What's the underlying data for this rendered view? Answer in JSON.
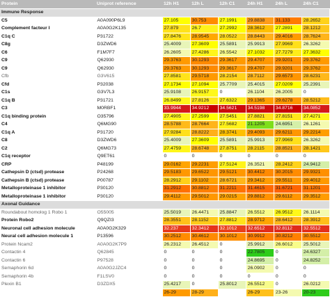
{
  "headers": [
    "Protein",
    "Uniprot reference",
    "12h H1",
    "12h L",
    "12h C1",
    "24h H1",
    "24h L",
    "24h C1"
  ],
  "rows": [
    {
      "type": "section",
      "title": "Immune Response"
    },
    {
      "protein": "C5",
      "uniprot": "A0A090P6L9",
      "cells": [
        {
          "v": "27.105",
          "c": "#ffff00"
        },
        {
          "v": "30.753",
          "c": "#ff8c00"
        },
        {
          "v": "27.1991",
          "c": "#ffff00"
        },
        {
          "v": "29.8838",
          "c": "#ff9c1a"
        },
        {
          "v": "31.133",
          "c": "#ff7a00"
        },
        {
          "v": "28.2652",
          "c": "#ffd21a"
        }
      ]
    },
    {
      "protein": "Complement facteur I",
      "uniprot": "A0A0G2K135",
      "cells": [
        {
          "v": "27.879",
          "c": "#ffe21a"
        },
        {
          "v": "26.7",
          "c": "#fff21a"
        },
        {
          "v": "27.2992",
          "c": "#ffff00"
        },
        {
          "v": "28.3612",
          "c": "#ffc000"
        },
        {
          "v": "27.2891",
          "c": "#ffff00"
        },
        {
          "v": "28.1212",
          "c": "#ffc81a"
        }
      ]
    },
    {
      "protein": "C1q C",
      "uniprot": "P31722",
      "cells": [
        {
          "v": "27.8476",
          "c": "#ffe41a"
        },
        {
          "v": "28.9545",
          "c": "#ffa800"
        },
        {
          "v": "28.0522",
          "c": "#ffda1a"
        },
        {
          "v": "28.8443",
          "c": "#ffb01a"
        },
        {
          "v": "29.4016",
          "c": "#ff9a00"
        },
        {
          "v": "28.7624",
          "c": "#ffb41a"
        }
      ]
    },
    {
      "protein": "C8g",
      "uniprot": "D3ZWD6",
      "cells": [
        {
          "v": "25.4009",
          "c": "#e8f5b8"
        },
        {
          "v": "27.3609",
          "c": "#ffff00"
        },
        {
          "v": "25.5891",
          "c": "#e8f5b8"
        },
        {
          "v": "25.9913",
          "c": "#e8f5b8"
        },
        {
          "v": "27.9969",
          "c": "#ffe01a"
        },
        {
          "v": "26.3262",
          "c": "#f4fab0"
        }
      ]
    },
    {
      "protein": "C6",
      "uniprot": "F1M7F7",
      "cells": [
        {
          "v": "26.2605",
          "c": "#f4fab0"
        },
        {
          "v": "27.4286",
          "c": "#fff61a"
        },
        {
          "v": "26.5542",
          "c": "#f8fc8a"
        },
        {
          "v": "27.1032",
          "c": "#ffff00"
        },
        {
          "v": "27.7279",
          "c": "#ffec1a"
        },
        {
          "v": "27.3632",
          "c": "#ffff00"
        }
      ]
    },
    {
      "protein": "C9",
      "uniprot": "Q62930",
      "cells": [
        {
          "v": "29.3763",
          "c": "#ff9a00"
        },
        {
          "v": "30.1293",
          "c": "#ff8a00"
        },
        {
          "v": "29.3617",
          "c": "#ff9a00"
        },
        {
          "v": "29.4707",
          "c": "#ff9800"
        },
        {
          "v": "29.9201",
          "c": "#ff9000"
        },
        {
          "v": "29.3762",
          "c": "#ff9a00"
        }
      ]
    },
    {
      "protein": "C9",
      "uniprot": "Q62930",
      "cells": [
        {
          "v": "29.3763",
          "c": "#ff9a00"
        },
        {
          "v": "30.1293",
          "c": "#ff8a00"
        },
        {
          "v": "29.3617",
          "c": "#ff9a00"
        },
        {
          "v": "29.4707",
          "c": "#ff9800"
        },
        {
          "v": "29.9201",
          "c": "#ff9000"
        },
        {
          "v": "29.3762",
          "c": "#ff9a00"
        }
      ]
    },
    {
      "protein": "Cfb",
      "uniprot": "G3V615",
      "lite": true,
      "cells": [
        {
          "v": "27.8581",
          "c": "#ffe41a"
        },
        {
          "v": "29.5718",
          "c": "#ff9a00"
        },
        {
          "v": "28.2154",
          "c": "#ffd21a"
        },
        {
          "v": "28.7112",
          "c": "#ffb61a"
        },
        {
          "v": "29.6573",
          "c": "#ff9600"
        },
        {
          "v": "28.6231",
          "c": "#ffb81a"
        }
      ]
    },
    {
      "protein": "Cfd",
      "uniprot": "P32038",
      "cells": [
        {
          "v": "27.1734",
          "c": "#ffff00"
        },
        {
          "v": "27.1094",
          "c": "#ffff00"
        },
        {
          "v": "25.7709",
          "c": "#e8f5b8"
        },
        {
          "v": "25.4015",
          "c": "#e8f5b8"
        },
        {
          "v": "27.0209",
          "c": "#ffff00"
        },
        {
          "v": "25.2391",
          "c": "#e8f5b8"
        }
      ]
    },
    {
      "protein": "C1s",
      "uniprot": "G3V7L3",
      "cells": [
        {
          "v": "25.9108",
          "c": "#e8f5b8"
        },
        {
          "v": "26.9157",
          "c": "#fff81a"
        },
        {
          "v": "0",
          "c": "#ffffff"
        },
        {
          "v": "26.1104",
          "c": "#f4fab0"
        },
        {
          "v": "26.2005",
          "c": "#f4fab0"
        },
        {
          "v": "0",
          "c": "#ffffff"
        }
      ]
    },
    {
      "protein": "C1q B",
      "uniprot": "P31721",
      "cells": [
        {
          "v": "26.8499",
          "c": "#fff81a"
        },
        {
          "v": "27.8126",
          "c": "#ffe61a"
        },
        {
          "v": "27.6322",
          "c": "#ffee1a"
        },
        {
          "v": "29.1365",
          "c": "#ffa000"
        },
        {
          "v": "29.6278",
          "c": "#ff9600"
        },
        {
          "v": "28.5212",
          "c": "#ffbc1a"
        }
      ]
    },
    {
      "protein": "C3",
      "uniprot": "M0RBF1",
      "cells": [
        {
          "v": "33.9944",
          "c": "#d41a1a",
          "light": true
        },
        {
          "v": "34.9212",
          "c": "#c80000",
          "light": true
        },
        {
          "v": "34.5621",
          "c": "#cc0a0a",
          "light": true
        },
        {
          "v": "34.5198",
          "c": "#cc0a0a",
          "light": true
        },
        {
          "v": "34.8716",
          "c": "#c80000",
          "light": true
        },
        {
          "v": "34.0852",
          "c": "#d41a1a",
          "light": true
        }
      ]
    },
    {
      "protein": "C1q binding protein",
      "uniprot": "O35796",
      "cells": [
        {
          "v": "27.4905",
          "c": "#fff61a"
        },
        {
          "v": "27.2599",
          "c": "#ffff00"
        },
        {
          "v": "27.5451",
          "c": "#fff41a"
        },
        {
          "v": "27.8821",
          "c": "#ffe21a"
        },
        {
          "v": "27.8151",
          "c": "#ffe61a"
        },
        {
          "v": "27.4271",
          "c": "#fff61a"
        }
      ]
    },
    {
      "protein": "C4",
      "uniprot": "Q6MG90",
      "cells": [
        {
          "v": "28.5788",
          "c": "#ffba1a"
        },
        {
          "v": "28.7664",
          "c": "#ffb41a"
        },
        {
          "v": "27.5682",
          "c": "#fff21a"
        },
        {
          "v": "21.1205",
          "c": "#7ede1a"
        },
        {
          "v": "24.6951",
          "c": "#d4efa8"
        },
        {
          "v": "26.1261",
          "c": "#f4fab0"
        }
      ]
    },
    {
      "protein": "C1q A",
      "uniprot": "P31720",
      "cells": [
        {
          "v": "27.9284",
          "c": "#ffe01a"
        },
        {
          "v": "28.8222",
          "c": "#ffb01a"
        },
        {
          "v": "28.3741",
          "c": "#ffc000"
        },
        {
          "v": "29.4093",
          "c": "#ff9a00"
        },
        {
          "v": "29.6211",
          "c": "#ff9600"
        },
        {
          "v": "29.2214",
          "c": "#ff9e00"
        }
      ]
    },
    {
      "protein": "C8",
      "uniprot": "D3ZWD6",
      "cells": [
        {
          "v": "25.4009",
          "c": "#e8f5b8"
        },
        {
          "v": "27.3609",
          "c": "#ffff00"
        },
        {
          "v": "25.5891",
          "c": "#e8f5b8"
        },
        {
          "v": "25.9913",
          "c": "#e8f5b8"
        },
        {
          "v": "27.9969",
          "c": "#ffe01a"
        },
        {
          "v": "26.3262",
          "c": "#f4fab0"
        }
      ]
    },
    {
      "protein": "C2",
      "uniprot": "Q6MG73",
      "cells": [
        {
          "v": "27.4759",
          "c": "#fff61a"
        },
        {
          "v": "28.6748",
          "c": "#ffb61a"
        },
        {
          "v": "27.8751",
          "c": "#ffe41a"
        },
        {
          "v": "28.2115",
          "c": "#ffd21a"
        },
        {
          "v": "28.8521",
          "c": "#ffb01a"
        },
        {
          "v": "28.1421",
          "c": "#ffc81a"
        }
      ]
    },
    {
      "protein": "C1q receptor",
      "uniprot": "Q9ET61",
      "cells": [
        {
          "v": "0",
          "c": "#ffffff"
        },
        {
          "v": "0",
          "c": "#ffffff"
        },
        {
          "v": "0",
          "c": "#ffffff"
        },
        {
          "v": "0",
          "c": "#ffffff"
        },
        {
          "v": "0",
          "c": "#ffffff"
        },
        {
          "v": "0",
          "c": "#ffffff"
        }
      ]
    },
    {
      "protein": "CRP",
      "uniprot": "P48199",
      "cells": [
        {
          "v": "29.0162",
          "c": "#ffa400"
        },
        {
          "v": "29.2231",
          "c": "#ff9e00"
        },
        {
          "v": "27.5124",
          "c": "#fff41a"
        },
        {
          "v": "26.3521",
          "c": "#f4fab0"
        },
        {
          "v": "28.2412",
          "c": "#ffd21a"
        },
        {
          "v": "24.9412",
          "c": "#d4efa8"
        }
      ]
    },
    {
      "protein": "Cathepsin D (ctsd) protease",
      "uniprot": "P24268",
      "cells": [
        {
          "v": "29.5183",
          "c": "#ff9800"
        },
        {
          "v": "29.6522",
          "c": "#ff9600"
        },
        {
          "v": "29.5121",
          "c": "#ff9800"
        },
        {
          "v": "30.4412",
          "c": "#ff8a00"
        },
        {
          "v": "30.2015",
          "c": "#ff8c00"
        },
        {
          "v": "29.9321",
          "c": "#ff9000"
        }
      ]
    },
    {
      "protein": "Cathepsin B (ctsd) protease",
      "uniprot": "P00787",
      "cells": [
        {
          "v": "28.2912",
          "c": "#ffd01a"
        },
        {
          "v": "29.1102",
          "c": "#ffa200"
        },
        {
          "v": "28.6721",
          "c": "#ffb61a"
        },
        {
          "v": "29.3412",
          "c": "#ff9c00"
        },
        {
          "v": "29.5511",
          "c": "#ff9800"
        },
        {
          "v": "29.4012",
          "c": "#ff9a00"
        }
      ]
    },
    {
      "protein": "Metalloproteinase 1 inhibitor",
      "uniprot": "P30120",
      "cells": [
        {
          "v": "31.2912",
          "c": "#ff7000"
        },
        {
          "v": "30.8812",
          "c": "#ff8000"
        },
        {
          "v": "31.2211",
          "c": "#ff7200"
        },
        {
          "v": "31.4615",
          "c": "#ff6a00"
        },
        {
          "v": "31.6721",
          "c": "#ff6400"
        },
        {
          "v": "31.1201",
          "c": "#ff7600"
        }
      ]
    },
    {
      "protein": "Metalloproteinase 1 inhibitor",
      "uniprot": "P30120",
      "cells": [
        {
          "v": "29.4112",
          "c": "#ff9a00"
        },
        {
          "v": "29.5012",
          "c": "#ff9800"
        },
        {
          "v": "29.0215",
          "c": "#ffa400"
        },
        {
          "v": "29.8812",
          "c": "#ff9200"
        },
        {
          "v": "29.6112",
          "c": "#ff9600"
        },
        {
          "v": "29.3512",
          "c": "#ff9c00"
        }
      ]
    },
    {
      "type": "section",
      "title": "Axonal Guidance"
    },
    {
      "protein": "Roundabout homolog 1 Robo 1",
      "uniprot": "O55005",
      "lite": true,
      "cells": [
        {
          "v": "25.5019",
          "c": "#e8f5b8"
        },
        {
          "v": "26.4471",
          "c": "#f4fab0"
        },
        {
          "v": "25.8847",
          "c": "#e8f5b8"
        },
        {
          "v": "26.5512",
          "c": "#f8fc8a"
        },
        {
          "v": "26.9512",
          "c": "#fff81a"
        },
        {
          "v": "26.1114",
          "c": "#f4fab0"
        }
      ]
    },
    {
      "protein": "Protein Robo2",
      "uniprot": "Q9QZI3",
      "cells": [
        {
          "v": "28.3551",
          "c": "#ffc01a"
        },
        {
          "v": "28.1152",
          "c": "#ffca1a"
        },
        {
          "v": "27.8812",
          "c": "#ffe21a"
        },
        {
          "v": "28.9712",
          "c": "#ffa600"
        },
        {
          "v": "28.6412",
          "c": "#ffb81a"
        },
        {
          "v": "28.3912",
          "c": "#ffbe1a"
        }
      ]
    },
    {
      "protein": "Neuronal cell adhesion molecule",
      "uniprot": "A0A0G2K329",
      "cells": [
        {
          "v": "32.237",
          "c": "#e83a1a",
          "light": true
        },
        {
          "v": "32.3412",
          "c": "#e6341a",
          "light": true
        },
        {
          "v": "32.1012",
          "c": "#ea401a",
          "light": true
        },
        {
          "v": "32.6512",
          "c": "#e22e1a",
          "light": true
        },
        {
          "v": "32.8112",
          "c": "#e02a1a",
          "light": true
        },
        {
          "v": "32.5512",
          "c": "#e4301a",
          "light": true
        }
      ]
    },
    {
      "protein": "Neural cell adhesion molecule 1",
      "uniprot": "P13596",
      "cells": [
        {
          "v": "30.2512",
          "c": "#ff8c00"
        },
        {
          "v": "30.4612",
          "c": "#ff8a00"
        },
        {
          "v": "30.1012",
          "c": "#ff8e00"
        },
        {
          "v": "30.9912",
          "c": "#ff7e00"
        },
        {
          "v": "30.8212",
          "c": "#ff8000"
        },
        {
          "v": "30.5512",
          "c": "#ff8800"
        }
      ]
    },
    {
      "protein": "Protein Ncam2",
      "uniprot": "A0A0G2K7P9",
      "lite": true,
      "cells": [
        {
          "v": "26.2312",
          "c": "#f4fab0"
        },
        {
          "v": "26.4512",
          "c": "#f4fab0"
        },
        {
          "v": "0",
          "c": "#ffffff"
        },
        {
          "v": "25.9912",
          "c": "#e8f5b8"
        },
        {
          "v": "26.6012",
          "c": "#f8fc8a"
        },
        {
          "v": "25.5012",
          "c": "#e8f5b8"
        }
      ]
    },
    {
      "protein": "Contactin 4",
      "uniprot": "Q62845",
      "lite": true,
      "cells": [
        {
          "v": "0",
          "c": "#ffffff"
        },
        {
          "v": "0",
          "c": "#ffffff"
        },
        {
          "v": "0",
          "c": "#ffffff"
        },
        {
          "v": "22.7805",
          "c": "#2ecc1a"
        },
        {
          "v": "0",
          "c": "#ffffff"
        },
        {
          "v": "24.6327",
          "c": "#d4efa8"
        }
      ]
    },
    {
      "protein": "Contactin 6",
      "uniprot": "P97528",
      "lite": true,
      "cells": [
        {
          "v": "0",
          "c": "#ffffff"
        },
        {
          "v": "0",
          "c": "#ffffff"
        },
        {
          "v": "0",
          "c": "#ffffff"
        },
        {
          "v": "24.8695",
          "c": "#d4efa8"
        },
        {
          "v": "0",
          "c": "#ffffff"
        },
        {
          "v": "24.8252",
          "c": "#d4efa8"
        }
      ]
    },
    {
      "protein": "Semaphorin 6d",
      "uniprot": "A0A0G2JZC4",
      "lite": true,
      "cells": [
        {
          "v": "0",
          "c": "#ffffff"
        },
        {
          "v": "0",
          "c": "#ffffff"
        },
        {
          "v": "0",
          "c": "#ffffff"
        },
        {
          "v": "26.0902",
          "c": "#f4fab0"
        },
        {
          "v": "0",
          "c": "#ffffff"
        },
        {
          "v": "0",
          "c": "#ffffff"
        }
      ]
    },
    {
      "protein": "Semaphorin 4b",
      "uniprot": "F1LSV0",
      "lite": true,
      "cells": [
        {
          "v": "0",
          "c": "#ffffff"
        },
        {
          "v": "0",
          "c": "#ffffff"
        },
        {
          "v": "0",
          "c": "#ffffff"
        },
        {
          "v": "0",
          "c": "#ffffff"
        },
        {
          "v": "0",
          "c": "#ffffff"
        },
        {
          "v": "0",
          "c": "#ffffff"
        }
      ]
    },
    {
      "protein": "Plexin B1",
      "uniprot": "D3ZDX5",
      "lite": true,
      "cells": [
        {
          "v": "25.4217",
          "c": "#e8f5b8"
        },
        {
          "v": "0",
          "c": "#ffffff"
        },
        {
          "v": "25.8012",
          "c": "#e8f5b8"
        },
        {
          "v": "26.5512",
          "c": "#f8fc8a"
        },
        {
          "v": "0",
          "c": "#ffffff"
        },
        {
          "v": "26.0212",
          "c": "#f4fab0"
        }
      ]
    },
    {
      "protein": "",
      "uniprot": "",
      "cells": [
        {
          "v": "26-29",
          "c": "#ff9a00"
        },
        {
          "v": "28-29",
          "c": "#ffb01a"
        },
        {
          "v": "",
          "c": "#ffffff"
        },
        {
          "v": "26-29",
          "c": "#ffc01a"
        },
        {
          "v": "23-26",
          "c": "#f4fab0"
        },
        {
          "v": "20-23",
          "c": "#2ecc1a"
        }
      ]
    }
  ]
}
